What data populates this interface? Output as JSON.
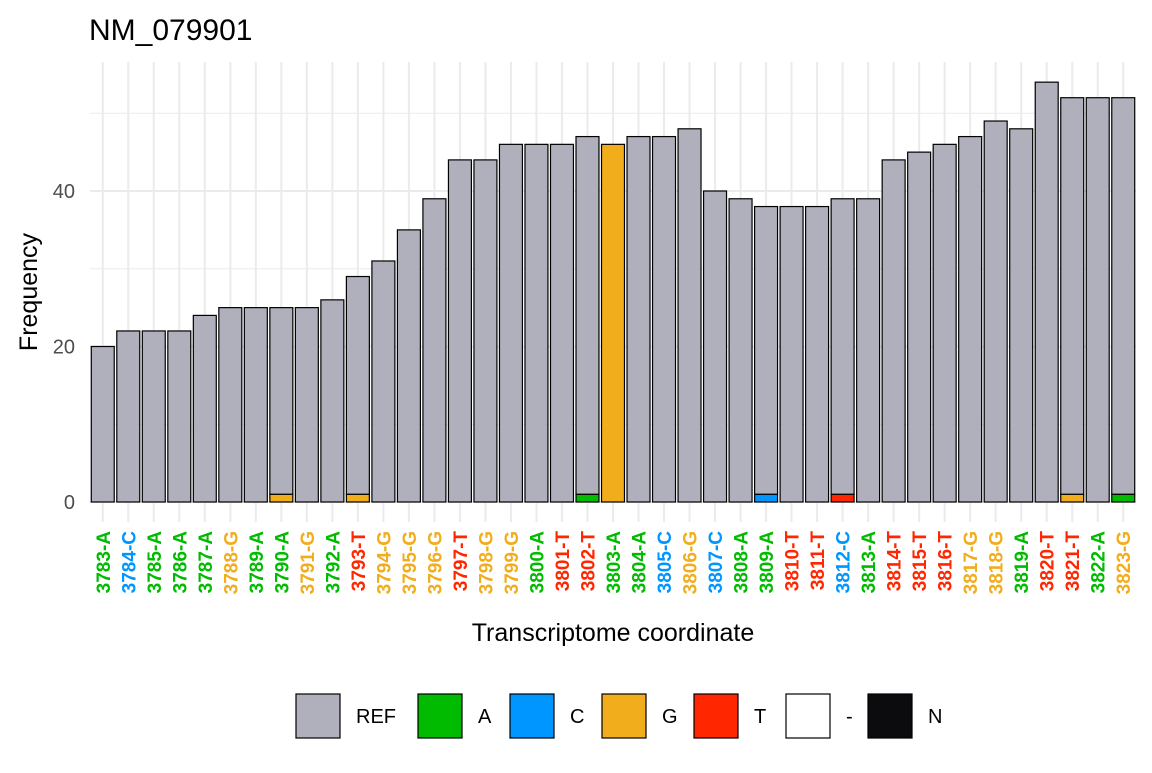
{
  "chart_data": {
    "type": "bar",
    "title": "NM_079901",
    "xlabel": "Transcriptome coordinate",
    "ylabel": "Frequency",
    "ylim": [
      0,
      55
    ],
    "yticks": [
      0,
      20,
      40
    ],
    "grid": true,
    "legend_position": "bottom",
    "colors": {
      "REF": "#b0b0bc",
      "A": "#00bb00",
      "C": "#0096ff",
      "G": "#f2ad1d",
      "T": "#ff2600",
      "-": "#ffffff",
      "N": "#0c0c0f"
    },
    "legend": [
      "REF",
      "A",
      "C",
      "G",
      "T",
      "-",
      "N"
    ],
    "categories": [
      "3783-A",
      "3784-C",
      "3785-A",
      "3786-A",
      "3787-A",
      "3788-G",
      "3789-A",
      "3790-A",
      "3791-G",
      "3792-A",
      "3793-T",
      "3794-G",
      "3795-G",
      "3796-G",
      "3797-T",
      "3798-G",
      "3799-G",
      "3800-A",
      "3801-T",
      "3802-T",
      "3803-A",
      "3804-A",
      "3805-C",
      "3806-G",
      "3807-C",
      "3808-A",
      "3809-A",
      "3810-T",
      "3811-T",
      "3812-C",
      "3813-A",
      "3814-T",
      "3815-T",
      "3816-T",
      "3817-G",
      "3818-G",
      "3819-A",
      "3820-T",
      "3821-T",
      "3822-A",
      "3823-G"
    ],
    "category_bases": [
      "A",
      "C",
      "A",
      "A",
      "A",
      "G",
      "A",
      "A",
      "G",
      "A",
      "T",
      "G",
      "G",
      "G",
      "T",
      "G",
      "G",
      "A",
      "T",
      "T",
      "A",
      "A",
      "C",
      "G",
      "C",
      "A",
      "A",
      "T",
      "T",
      "C",
      "A",
      "T",
      "T",
      "T",
      "G",
      "G",
      "A",
      "T",
      "T",
      "A",
      "G"
    ],
    "series": [
      {
        "name": "REF",
        "values": [
          20,
          22,
          22,
          22,
          24,
          25,
          25,
          24,
          25,
          26,
          28,
          31,
          35,
          39,
          44,
          44,
          46,
          46,
          46,
          46,
          0,
          47,
          47,
          48,
          40,
          39,
          37,
          38,
          38,
          38,
          39,
          44,
          45,
          46,
          47,
          49,
          48,
          54,
          51,
          52,
          51
        ]
      },
      {
        "name": "A",
        "values": [
          0,
          0,
          0,
          0,
          0,
          0,
          0,
          0,
          0,
          0,
          0,
          0,
          0,
          0,
          0,
          0,
          0,
          0,
          0,
          1,
          0,
          0,
          0,
          0,
          0,
          0,
          0,
          0,
          0,
          0,
          0,
          0,
          0,
          0,
          0,
          0,
          0,
          0,
          0,
          0,
          1
        ]
      },
      {
        "name": "C",
        "values": [
          0,
          0,
          0,
          0,
          0,
          0,
          0,
          0,
          0,
          0,
          0,
          0,
          0,
          0,
          0,
          0,
          0,
          0,
          0,
          0,
          0,
          0,
          0,
          0,
          0,
          0,
          1,
          0,
          0,
          0,
          0,
          0,
          0,
          0,
          0,
          0,
          0,
          0,
          0,
          0,
          0
        ]
      },
      {
        "name": "G",
        "values": [
          0,
          0,
          0,
          0,
          0,
          0,
          0,
          1,
          0,
          0,
          1,
          0,
          0,
          0,
          0,
          0,
          0,
          0,
          0,
          0,
          46,
          0,
          0,
          0,
          0,
          0,
          0,
          0,
          0,
          0,
          0,
          0,
          0,
          0,
          0,
          0,
          0,
          0,
          1,
          0,
          0
        ]
      },
      {
        "name": "T",
        "values": [
          0,
          0,
          0,
          0,
          0,
          0,
          0,
          0,
          0,
          0,
          0,
          0,
          0,
          0,
          0,
          0,
          0,
          0,
          0,
          0,
          0,
          0,
          0,
          0,
          0,
          0,
          0,
          0,
          0,
          1,
          0,
          0,
          0,
          0,
          0,
          0,
          0,
          0,
          0,
          0,
          0
        ]
      },
      {
        "name": "-",
        "values": [
          0,
          0,
          0,
          0,
          0,
          0,
          0,
          0,
          0,
          0,
          0,
          0,
          0,
          0,
          0,
          0,
          0,
          0,
          0,
          0,
          0,
          0,
          0,
          0,
          0,
          0,
          0,
          0,
          0,
          0,
          0,
          0,
          0,
          0,
          0,
          0,
          0,
          0,
          0,
          0,
          0
        ]
      },
      {
        "name": "N",
        "values": [
          0,
          0,
          0,
          0,
          0,
          0,
          0,
          0,
          0,
          0,
          0,
          0,
          0,
          0,
          0,
          0,
          0,
          0,
          0,
          0,
          0,
          0,
          0,
          0,
          0,
          0,
          0,
          0,
          0,
          0,
          0,
          0,
          0,
          0,
          0,
          0,
          0,
          0,
          0,
          0,
          0
        ]
      }
    ]
  }
}
